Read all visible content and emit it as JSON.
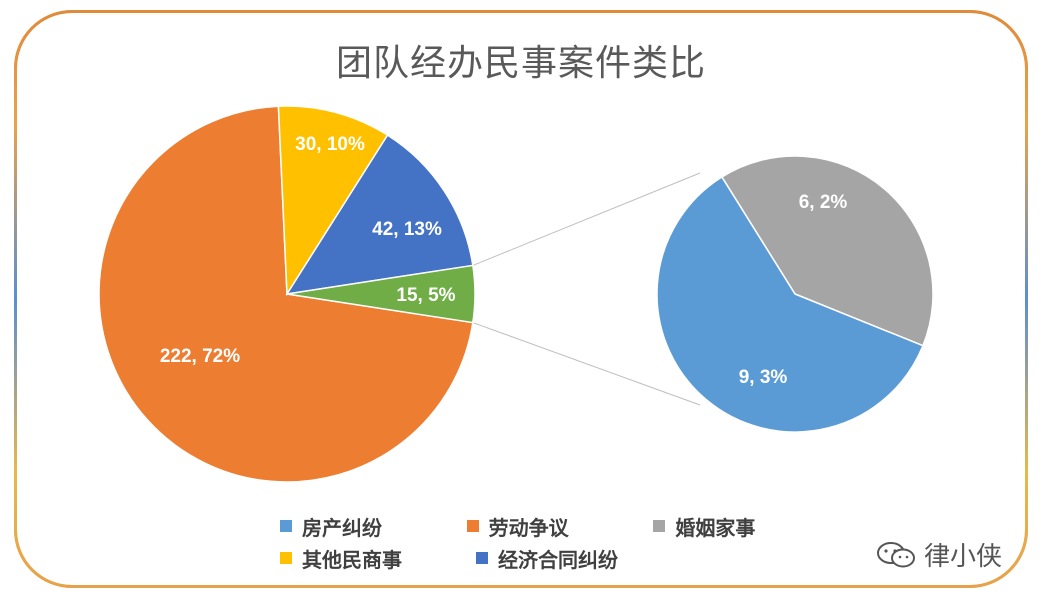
{
  "title": "团队经办民事案件类比",
  "colors": {
    "real_estate": "#5b9bd5",
    "labor": "#ed7d31",
    "marriage": "#a5a5a5",
    "other_civil": "#ffc000",
    "economic": "#4472c4",
    "grouped": "#70ad47"
  },
  "chart_data": {
    "type": "pie",
    "title": "团队经办民事案件类比",
    "main_pie": [
      {
        "label": "劳动争议",
        "value": 222,
        "percent": "72%",
        "color_key": "labor",
        "data_label": "222, 72%"
      },
      {
        "label": "其他民商事",
        "value": 30,
        "percent": "10%",
        "color_key": "other_civil",
        "data_label": "30, 10%"
      },
      {
        "label": "经济合同纠纷",
        "value": 42,
        "percent": "13%",
        "color_key": "economic",
        "data_label": "42, 13%"
      },
      {
        "label": "",
        "value": 15,
        "percent": "5%",
        "color_key": "grouped",
        "data_label": "15, 5%"
      }
    ],
    "secondary_pie": [
      {
        "label": "婚姻家事",
        "value": 6,
        "percent": "2%",
        "color_key": "marriage",
        "data_label": "6, 2%"
      },
      {
        "label": "房产纠纷",
        "value": 9,
        "percent": "3%",
        "color_key": "real_estate",
        "data_label": "9, 3%"
      }
    ],
    "legend": [
      {
        "label": "房产纠纷",
        "color_key": "real_estate"
      },
      {
        "label": "劳动争议",
        "color_key": "labor"
      },
      {
        "label": "婚姻家事",
        "color_key": "marriage"
      },
      {
        "label": "其他民商事",
        "color_key": "other_civil"
      },
      {
        "label": "经济合同纠纷",
        "color_key": "economic"
      }
    ],
    "legend_placement": "bottom"
  },
  "watermark": {
    "text": "律小侠",
    "icon": "wechat-icon"
  }
}
